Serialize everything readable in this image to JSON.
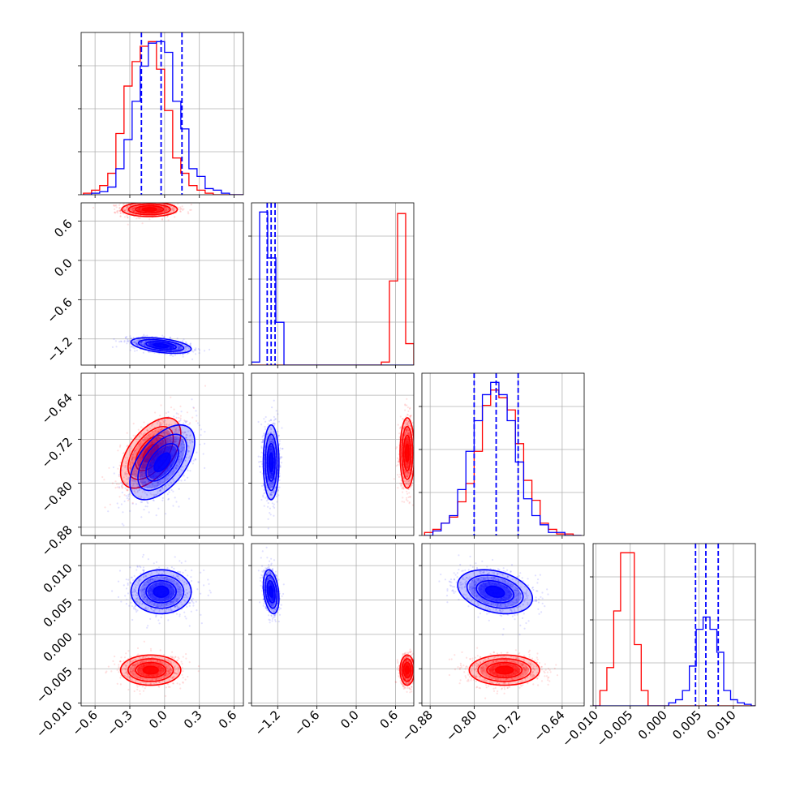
{
  "chart_data": {
    "type": "corner",
    "title": "",
    "grid": true,
    "series_colors": {
      "red": "#ff0000",
      "blue": "#0000ff"
    },
    "parameters": [
      {
        "range": [
          -0.72,
          0.68
        ],
        "ticks": [
          -0.6,
          -0.3,
          0.0,
          0.3,
          0.6
        ],
        "tick_labels": [
          "−0.6",
          "−0.3",
          "0.0",
          "0.3",
          "0.6"
        ]
      },
      {
        "range": [
          -1.6,
          0.88
        ],
        "ticks": [
          -1.2,
          -0.6,
          0.0,
          0.6
        ],
        "tick_labels": [
          "−1.2",
          "−0.6",
          "0.0",
          "0.6"
        ]
      },
      {
        "range": [
          -0.895,
          -0.6
        ],
        "ticks": [
          -0.88,
          -0.8,
          -0.72,
          -0.64
        ],
        "tick_labels": [
          "−0.88",
          "−0.80",
          "−0.72",
          "−0.64"
        ]
      },
      {
        "range": [
          -0.0104,
          0.0132
        ],
        "ticks": [
          -0.01,
          -0.005,
          0.0,
          0.005,
          0.01
        ],
        "tick_labels": [
          "−0.010",
          "−0.005",
          "0.000",
          "0.005",
          "0.010"
        ]
      }
    ],
    "blue_quantiles": [
      [
        -0.2,
        -0.03,
        0.15
      ],
      [
        -1.36,
        -1.3,
        -1.24
      ],
      [
        -0.8,
        -0.76,
        -0.72
      ],
      [
        0.0045,
        0.006,
        0.0078
      ]
    ],
    "histograms": [
      {
        "edges": [
          -0.7,
          -0.63,
          -0.56,
          -0.49,
          -0.42,
          -0.35,
          -0.28,
          -0.21,
          -0.14,
          -0.07,
          0.0,
          0.07,
          0.14,
          0.21,
          0.28,
          0.35,
          0.42,
          0.49,
          0.56,
          0.63,
          0.7
        ],
        "red": [
          0.01,
          0.03,
          0.06,
          0.14,
          0.4,
          0.71,
          0.87,
          0.97,
          1.0,
          0.82,
          0.55,
          0.24,
          0.14,
          0.06,
          0.03,
          0.01,
          0.0,
          0.0,
          0.0,
          0.0
        ],
        "blue": [
          0.0,
          0.01,
          0.02,
          0.05,
          0.17,
          0.36,
          0.61,
          0.84,
          0.99,
          1.0,
          0.93,
          0.61,
          0.43,
          0.17,
          0.12,
          0.04,
          0.03,
          0.01,
          0.0,
          0.0
        ]
      },
      {
        "edges": [
          -1.6,
          -1.476,
          -1.352,
          -1.228,
          -1.104,
          -0.98,
          -0.856,
          -0.732,
          -0.608,
          -0.484,
          -0.36,
          -0.236,
          -0.112,
          0.012,
          0.136,
          0.26,
          0.384,
          0.508,
          0.632,
          0.756,
          0.88
        ],
        "red": [
          0,
          0,
          0,
          0,
          0,
          0,
          0,
          0,
          0,
          0,
          0,
          0,
          0,
          0,
          0,
          0,
          0.02,
          0.55,
          0.99,
          0.14
        ],
        "blue": [
          0.02,
          1.0,
          0.7,
          0.28,
          0.0,
          0.0,
          0,
          0,
          0,
          0,
          0,
          0,
          0,
          0,
          0,
          0,
          0,
          0,
          0,
          0
        ]
      },
      {
        "edges": [
          -0.89,
          -0.875,
          -0.86,
          -0.845,
          -0.83,
          -0.815,
          -0.8,
          -0.785,
          -0.77,
          -0.755,
          -0.74,
          -0.725,
          -0.71,
          -0.695,
          -0.68,
          -0.665,
          -0.65,
          -0.635,
          -0.62,
          -0.605
        ],
        "red": [
          0.02,
          0.04,
          0.08,
          0.12,
          0.22,
          0.34,
          0.55,
          0.85,
          0.95,
          0.9,
          0.82,
          0.6,
          0.36,
          0.23,
          0.08,
          0.04,
          0.01,
          0.01,
          0.0
        ],
        "blue": [
          0.0,
          0.03,
          0.08,
          0.13,
          0.3,
          0.55,
          0.75,
          0.92,
          1.0,
          0.92,
          0.75,
          0.48,
          0.24,
          0.13,
          0.07,
          0.02,
          0.02,
          0.0,
          0.0
        ]
      },
      {
        "edges": [
          -0.0104,
          -0.0094,
          -0.0084,
          -0.0074,
          -0.0064,
          -0.0054,
          -0.0044,
          -0.0034,
          -0.0024,
          -0.0014,
          -0.0004,
          0.0006,
          0.0016,
          0.0026,
          0.0036,
          0.0046,
          0.0056,
          0.0066,
          0.0076,
          0.0086,
          0.0096,
          0.0106,
          0.0116,
          0.0126,
          0.0132
        ],
        "red": [
          0.0,
          0.1,
          0.25,
          0.62,
          1.0,
          1.0,
          0.4,
          0.1,
          0.0,
          0,
          0,
          0,
          0,
          0,
          0,
          0,
          0,
          0,
          0,
          0,
          0,
          0,
          0,
          0
        ],
        "blue": [
          0,
          0,
          0,
          0,
          0,
          0,
          0,
          0,
          0,
          0,
          0.0,
          0.02,
          0.04,
          0.1,
          0.26,
          0.5,
          0.58,
          0.5,
          0.35,
          0.1,
          0.04,
          0.02,
          0.01,
          0.0
        ]
      }
    ],
    "pairs": [
      {
        "row": 1,
        "col": 0,
        "red": {
          "mean": [
            -0.13,
            0.78
          ],
          "sd": [
            0.12,
            0.055
          ],
          "rho": 0.0
        },
        "blue": {
          "mean": [
            -0.03,
            -1.3
          ],
          "sd": [
            0.13,
            0.06
          ],
          "rho": -0.45
        }
      },
      {
        "row": 2,
        "col": 0,
        "red": {
          "mean": [
            -0.12,
            -0.745
          ],
          "sd": [
            0.13,
            0.032
          ],
          "rho": 0.55
        },
        "blue": {
          "mean": [
            -0.02,
            -0.762
          ],
          "sd": [
            0.14,
            0.034
          ],
          "rho": 0.55
        }
      },
      {
        "row": 2,
        "col": 1,
        "red": {
          "mean": [
            0.78,
            -0.745
          ],
          "sd": [
            0.055,
            0.032
          ],
          "rho": 0.0
        },
        "blue": {
          "mean": [
            -1.3,
            -0.762
          ],
          "sd": [
            0.06,
            0.034
          ],
          "rho": 0.0
        }
      },
      {
        "row": 3,
        "col": 0,
        "red": {
          "mean": [
            -0.12,
            -0.0052
          ],
          "sd": [
            0.13,
            0.0011
          ],
          "rho": 0.0
        },
        "blue": {
          "mean": [
            -0.03,
            0.0062
          ],
          "sd": [
            0.13,
            0.0016
          ],
          "rho": 0.0
        }
      },
      {
        "row": 3,
        "col": 1,
        "red": {
          "mean": [
            0.78,
            -0.0052
          ],
          "sd": [
            0.055,
            0.0011
          ],
          "rho": 0.0
        },
        "blue": {
          "mean": [
            -1.3,
            0.0062
          ],
          "sd": [
            0.06,
            0.0016
          ],
          "rho": -0.3
        }
      },
      {
        "row": 3,
        "col": 2,
        "red": {
          "mean": [
            -0.745,
            -0.0052
          ],
          "sd": [
            0.032,
            0.0011
          ],
          "rho": 0.0
        },
        "blue": {
          "mean": [
            -0.762,
            0.0062
          ],
          "sd": [
            0.034,
            0.0016
          ],
          "rho": -0.3
        }
      }
    ]
  }
}
